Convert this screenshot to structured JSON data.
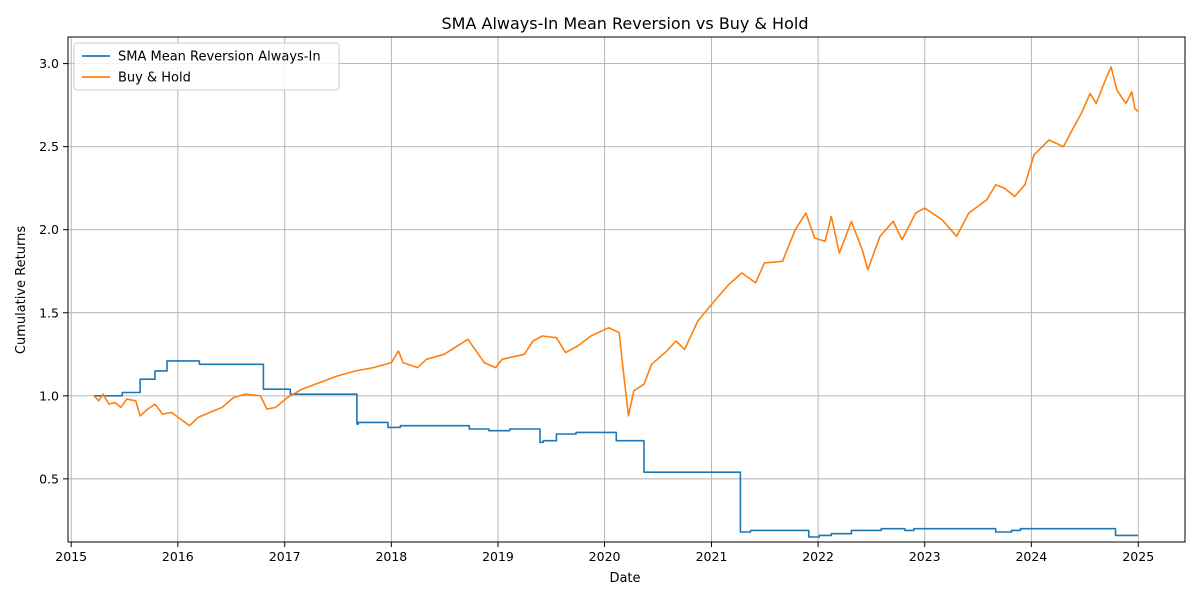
{
  "chart_data": {
    "type": "line",
    "title": "SMA Always-In Mean Reversion vs Buy & Hold",
    "xlabel": "Date",
    "ylabel": "Cumulative Returns",
    "xlim": [
      "2014-12-21",
      "2025-06-10"
    ],
    "ylim": [
      0.12,
      3.16
    ],
    "grid": true,
    "legend": "upper-left",
    "x_ticks": [
      "2015",
      "2016",
      "2017",
      "2018",
      "2019",
      "2020",
      "2021",
      "2022",
      "2023",
      "2024",
      "2025"
    ],
    "y_ticks": [
      "0.5",
      "1.0",
      "1.5",
      "2.0",
      "2.5",
      "3.0"
    ],
    "series": [
      {
        "name": "SMA Mean Reversion Always-In",
        "color": "#1f77b4",
        "step": true,
        "points": [
          [
            "2015-03-20",
            1.0
          ],
          [
            "2015-06-25",
            1.02
          ],
          [
            "2015-08-25",
            1.1
          ],
          [
            "2015-10-15",
            1.15
          ],
          [
            "2015-11-25",
            1.21
          ],
          [
            "2016-03-15",
            1.19
          ],
          [
            "2016-10-20",
            1.04
          ],
          [
            "2016-12-25",
            1.04
          ],
          [
            "2017-01-20",
            1.01
          ],
          [
            "2017-09-05",
            0.83
          ],
          [
            "2017-09-10",
            0.84
          ],
          [
            "2017-12-20",
            0.81
          ],
          [
            "2018-02-01",
            0.82
          ],
          [
            "2018-04-25",
            0.82
          ],
          [
            "2018-09-25",
            0.8
          ],
          [
            "2018-12-01",
            0.79
          ],
          [
            "2019-02-10",
            0.8
          ],
          [
            "2019-05-25",
            0.72
          ],
          [
            "2019-06-05",
            0.73
          ],
          [
            "2019-07-20",
            0.77
          ],
          [
            "2019-09-25",
            0.78
          ],
          [
            "2020-02-10",
            0.73
          ],
          [
            "2020-05-15",
            0.54
          ],
          [
            "2021-04-10",
            0.18
          ],
          [
            "2021-05-15",
            0.19
          ],
          [
            "2021-11-30",
            0.15
          ],
          [
            "2022-01-05",
            0.16
          ],
          [
            "2022-02-15",
            0.17
          ],
          [
            "2022-04-25",
            0.19
          ],
          [
            "2022-08-05",
            0.2
          ],
          [
            "2022-10-25",
            0.19
          ],
          [
            "2022-11-25",
            0.2
          ],
          [
            "2023-09-01",
            0.18
          ],
          [
            "2023-10-25",
            0.19
          ],
          [
            "2023-11-25",
            0.2
          ],
          [
            "2024-10-15",
            0.16
          ],
          [
            "2025-01-01",
            0.16
          ]
        ]
      },
      {
        "name": "Buy & Hold",
        "color": "#ff7f0e",
        "step": false,
        "points": [
          [
            "2015-03-20",
            1.0
          ],
          [
            "2015-04-05",
            0.97
          ],
          [
            "2015-04-20",
            1.01
          ],
          [
            "2015-05-10",
            0.95
          ],
          [
            "2015-05-30",
            0.96
          ],
          [
            "2015-06-20",
            0.93
          ],
          [
            "2015-07-10",
            0.98
          ],
          [
            "2015-08-10",
            0.97
          ],
          [
            "2015-08-25",
            0.88
          ],
          [
            "2015-09-20",
            0.92
          ],
          [
            "2015-10-15",
            0.95
          ],
          [
            "2015-11-10",
            0.89
          ],
          [
            "2015-12-10",
            0.9
          ],
          [
            "2016-01-10",
            0.86
          ],
          [
            "2016-02-10",
            0.82
          ],
          [
            "2016-03-10",
            0.87
          ],
          [
            "2016-04-20",
            0.9
          ],
          [
            "2016-06-01",
            0.93
          ],
          [
            "2016-07-10",
            0.99
          ],
          [
            "2016-08-20",
            1.01
          ],
          [
            "2016-10-10",
            1.0
          ],
          [
            "2016-11-01",
            0.92
          ],
          [
            "2016-12-01",
            0.93
          ],
          [
            "2017-01-10",
            0.99
          ],
          [
            "2017-03-01",
            1.04
          ],
          [
            "2017-05-01",
            1.08
          ],
          [
            "2017-07-01",
            1.12
          ],
          [
            "2017-09-01",
            1.15
          ],
          [
            "2017-11-01",
            1.17
          ],
          [
            "2018-01-01",
            1.2
          ],
          [
            "2018-01-25",
            1.27
          ],
          [
            "2018-02-10",
            1.2
          ],
          [
            "2018-04-01",
            1.17
          ],
          [
            "2018-05-01",
            1.22
          ],
          [
            "2018-07-01",
            1.25
          ],
          [
            "2018-09-20",
            1.34
          ],
          [
            "2018-11-15",
            1.2
          ],
          [
            "2018-12-24",
            1.17
          ],
          [
            "2019-01-15",
            1.22
          ],
          [
            "2019-04-01",
            1.25
          ],
          [
            "2019-05-01",
            1.33
          ],
          [
            "2019-06-01",
            1.36
          ],
          [
            "2019-07-20",
            1.35
          ],
          [
            "2019-08-20",
            1.26
          ],
          [
            "2019-10-01",
            1.3
          ],
          [
            "2019-11-15",
            1.36
          ],
          [
            "2020-01-15",
            1.41
          ],
          [
            "2020-02-20",
            1.38
          ],
          [
            "2020-03-05",
            1.15
          ],
          [
            "2020-03-23",
            0.88
          ],
          [
            "2020-04-10",
            1.03
          ],
          [
            "2020-05-15",
            1.07
          ],
          [
            "2020-06-10",
            1.19
          ],
          [
            "2020-08-01",
            1.27
          ],
          [
            "2020-09-01",
            1.33
          ],
          [
            "2020-10-01",
            1.28
          ],
          [
            "2020-11-15",
            1.45
          ],
          [
            "2021-01-01",
            1.55
          ],
          [
            "2021-03-01",
            1.67
          ],
          [
            "2021-04-15",
            1.74
          ],
          [
            "2021-06-01",
            1.68
          ],
          [
            "2021-07-01",
            1.8
          ],
          [
            "2021-09-01",
            1.81
          ],
          [
            "2021-10-15",
            2.0
          ],
          [
            "2021-11-20",
            2.1
          ],
          [
            "2021-12-20",
            1.95
          ],
          [
            "2022-01-25",
            1.93
          ],
          [
            "2022-02-15",
            2.08
          ],
          [
            "2022-03-15",
            1.86
          ],
          [
            "2022-04-25",
            2.05
          ],
          [
            "2022-06-01",
            1.88
          ],
          [
            "2022-06-20",
            1.76
          ],
          [
            "2022-08-01",
            1.96
          ],
          [
            "2022-09-15",
            2.05
          ],
          [
            "2022-10-15",
            1.94
          ],
          [
            "2022-12-01",
            2.1
          ],
          [
            "2023-01-01",
            2.13
          ],
          [
            "2023-03-01",
            2.06
          ],
          [
            "2023-04-20",
            1.96
          ],
          [
            "2023-06-01",
            2.1
          ],
          [
            "2023-08-01",
            2.18
          ],
          [
            "2023-09-01",
            2.27
          ],
          [
            "2023-10-01",
            2.25
          ],
          [
            "2023-11-05",
            2.2
          ],
          [
            "2023-12-10",
            2.27
          ],
          [
            "2024-01-10",
            2.45
          ],
          [
            "2024-03-01",
            2.54
          ],
          [
            "2024-04-20",
            2.5
          ],
          [
            "2024-05-20",
            2.6
          ],
          [
            "2024-06-20",
            2.7
          ],
          [
            "2024-07-20",
            2.82
          ],
          [
            "2024-08-10",
            2.76
          ],
          [
            "2024-09-10",
            2.9
          ],
          [
            "2024-09-30",
            2.98
          ],
          [
            "2024-10-20",
            2.84
          ],
          [
            "2024-11-20",
            2.76
          ],
          [
            "2024-12-10",
            2.83
          ],
          [
            "2024-12-20",
            2.73
          ],
          [
            "2025-01-01",
            2.71
          ]
        ]
      }
    ]
  }
}
